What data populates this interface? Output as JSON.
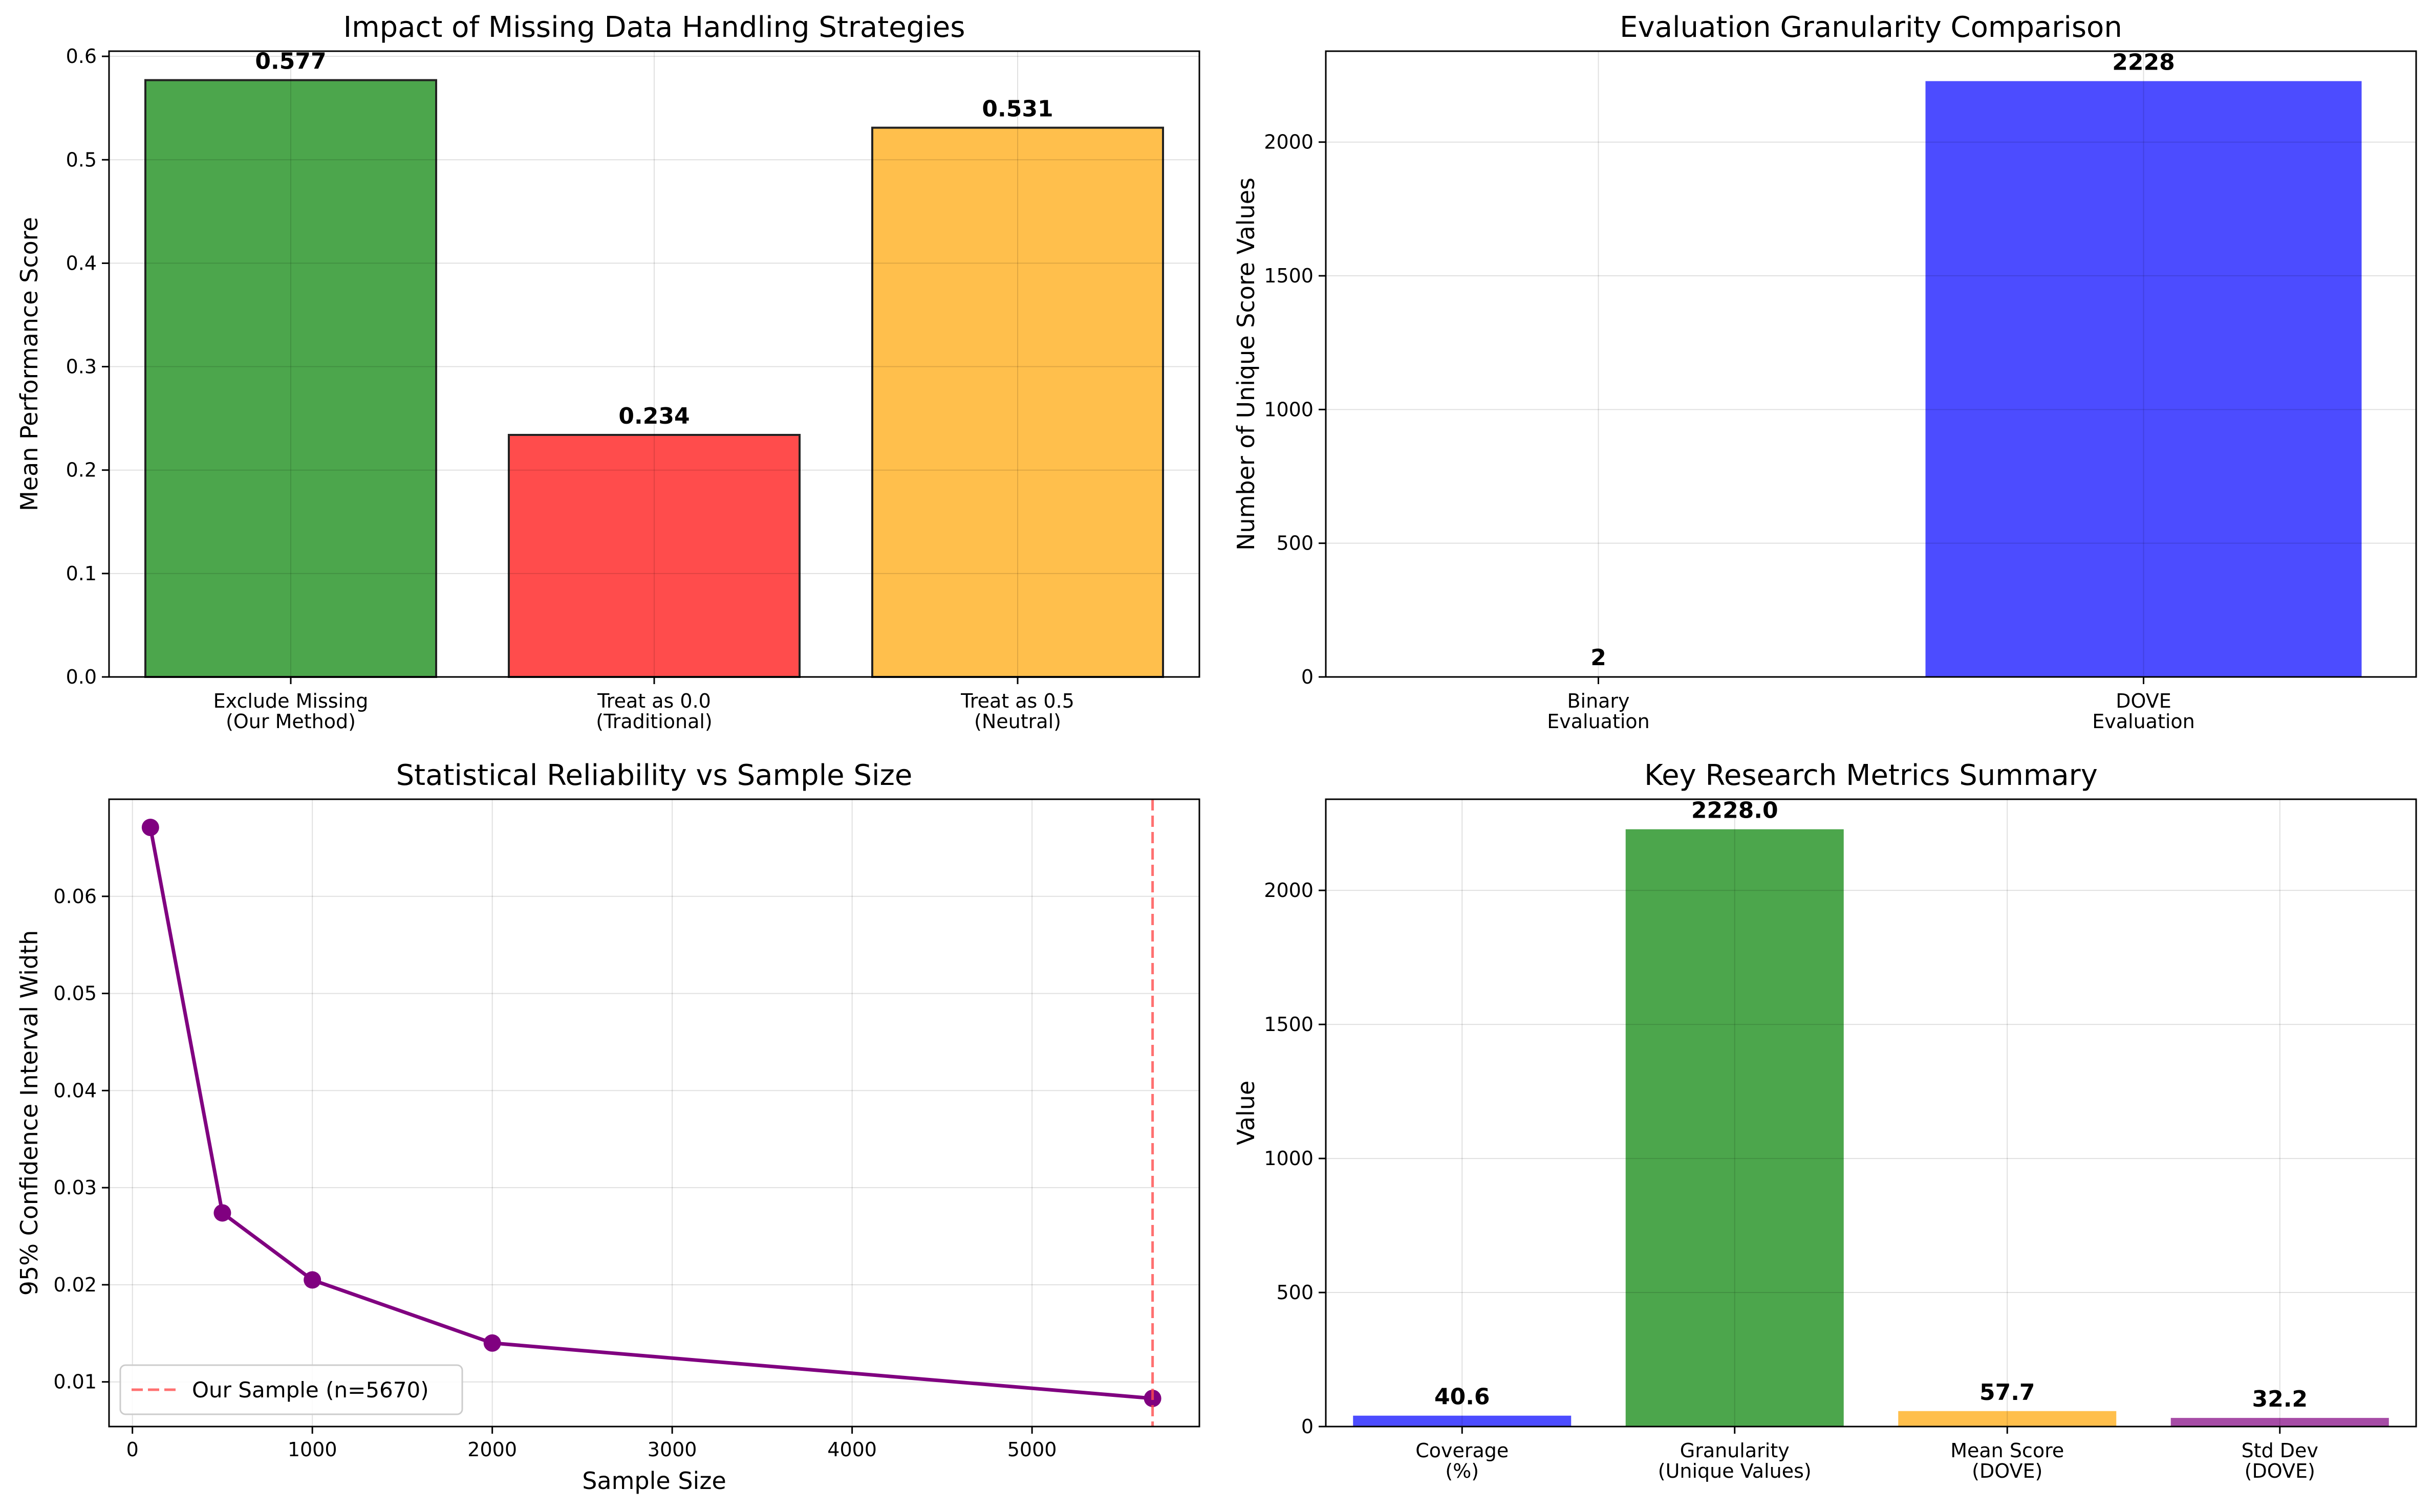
{
  "chart_data": [
    {
      "type": "bar",
      "title": "Impact of Missing Data Handling Strategies",
      "xlabel": "",
      "ylabel": "Mean Performance Score",
      "categories": [
        "Exclude Missing\n(Our Method)",
        "Treat as 0.0\n(Traditional)",
        "Treat as 0.5\n(Neutral)"
      ],
      "values": [
        0.577,
        0.234,
        0.531
      ],
      "value_labels": [
        "0.577",
        "0.234",
        "0.531"
      ],
      "colors": [
        "#4ca64c",
        "#ff4c4c",
        "#ffbf4c"
      ],
      "edgecolor": "#222222",
      "ylim": [
        0,
        0.605
      ],
      "yticks": [
        0.0,
        0.1,
        0.2,
        0.3,
        0.4,
        0.5,
        0.6
      ],
      "ytick_labels": [
        "0.0",
        "0.1",
        "0.2",
        "0.3",
        "0.4",
        "0.5",
        "0.6"
      ],
      "grid": true
    },
    {
      "type": "bar",
      "title": "Evaluation Granularity Comparison",
      "xlabel": "",
      "ylabel": "Number of Unique Score Values",
      "categories": [
        "Binary\nEvaluation",
        "DOVE\nEvaluation"
      ],
      "values": [
        2,
        2228
      ],
      "value_labels": [
        "2",
        "2228"
      ],
      "colors": [
        "#4c4cff",
        "#4c4cff"
      ],
      "edgecolor": "",
      "ylim": [
        0,
        2340
      ],
      "yticks": [
        0,
        500,
        1000,
        1500,
        2000
      ],
      "ytick_labels": [
        "0",
        "500",
        "1000",
        "1500",
        "2000"
      ],
      "grid": true
    },
    {
      "type": "line",
      "title": "Statistical Reliability vs Sample Size",
      "xlabel": "Sample Size",
      "ylabel": "95% Confidence Interval Width",
      "x": [
        100,
        500,
        1000,
        2000,
        5670
      ],
      "y": [
        0.0671,
        0.0274,
        0.0205,
        0.014,
        0.0083
      ],
      "color": "#800080",
      "xlim": [
        -130,
        5930
      ],
      "ylim": [
        0.0054,
        0.07
      ],
      "xticks": [
        0,
        1000,
        2000,
        3000,
        4000,
        5000
      ],
      "xtick_labels": [
        "0",
        "1000",
        "2000",
        "3000",
        "4000",
        "5000"
      ],
      "yticks": [
        0.01,
        0.02,
        0.03,
        0.04,
        0.05,
        0.06
      ],
      "ytick_labels": [
        "0.01",
        "0.02",
        "0.03",
        "0.04",
        "0.05",
        "0.06"
      ],
      "vline": {
        "x": 5670,
        "color": "#ff4c4c",
        "label": "Our Sample (n=5670)"
      },
      "legend": "lower-left",
      "grid": true
    },
    {
      "type": "bar",
      "title": "Key Research Metrics Summary",
      "xlabel": "",
      "ylabel": "Value",
      "categories": [
        "Coverage\n(%)",
        "Granularity\n(Unique Values)",
        "Mean Score\n(DOVE)",
        "Std Dev\n(DOVE)"
      ],
      "values": [
        40.6,
        2228.0,
        57.7,
        32.2
      ],
      "value_labels": [
        "40.6",
        "2228.0",
        "57.7",
        "32.2"
      ],
      "colors": [
        "#4c4cff",
        "#4ca64c",
        "#ffbf4c",
        "#a64ca6"
      ],
      "edgecolor": "",
      "ylim": [
        0,
        2340
      ],
      "yticks": [
        0,
        500,
        1000,
        1500,
        2000
      ],
      "ytick_labels": [
        "0",
        "500",
        "1000",
        "1500",
        "2000"
      ],
      "grid": true
    }
  ]
}
